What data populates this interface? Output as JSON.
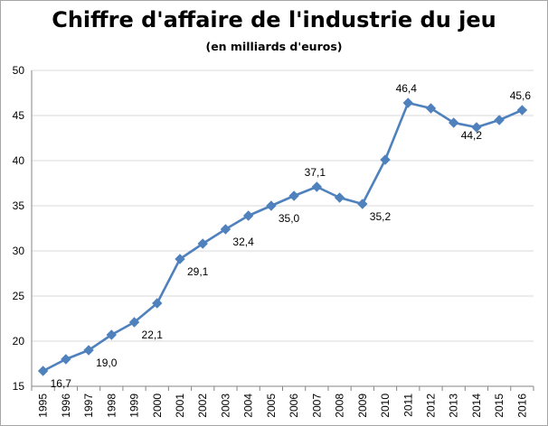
{
  "chart_data": {
    "type": "line",
    "title": "Chiffre d'affaire de l'industrie du jeu",
    "subtitle": "(en milliards d'euros)",
    "xlabel": "",
    "ylabel": "",
    "ylim": [
      15,
      50
    ],
    "yticks": [
      "15",
      "20",
      "25",
      "30",
      "35",
      "40",
      "45",
      "50"
    ],
    "grid": true,
    "legend": "none",
    "x": [
      "1995",
      "1996",
      "1997",
      "1998",
      "1999",
      "2000",
      "2001",
      "2002",
      "2003",
      "2004",
      "2005",
      "2006",
      "2007",
      "2008",
      "2009",
      "2010",
      "2011",
      "2012",
      "2013",
      "2014",
      "2015",
      "2016"
    ],
    "series": [
      {
        "color": "#4f81bd",
        "marker": "diamond",
        "values": [
          16.7,
          18.0,
          19.0,
          20.7,
          22.1,
          24.2,
          29.1,
          30.8,
          32.4,
          33.9,
          35.0,
          36.1,
          37.1,
          35.9,
          35.2,
          40.1,
          46.4,
          45.8,
          44.2,
          43.7,
          44.5,
          45.6
        ]
      }
    ],
    "data_labels": [
      {
        "index": 0,
        "text": "16,7"
      },
      {
        "index": 2,
        "text": "19,0"
      },
      {
        "index": 4,
        "text": "22,1"
      },
      {
        "index": 6,
        "text": "29,1"
      },
      {
        "index": 8,
        "text": "32,4"
      },
      {
        "index": 10,
        "text": "35,0"
      },
      {
        "index": 12,
        "text": "37,1"
      },
      {
        "index": 14,
        "text": "35,2"
      },
      {
        "index": 16,
        "text": "46,4"
      },
      {
        "index": 18,
        "text": "44,2"
      },
      {
        "index": 21,
        "text": "45,6"
      }
    ]
  }
}
